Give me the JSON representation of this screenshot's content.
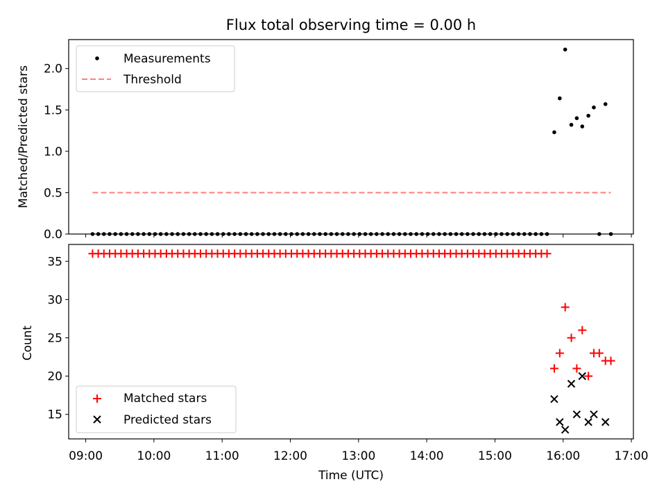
{
  "chart_data": [
    {
      "type": "scatter",
      "title": "Flux total observing time = 0.00 h",
      "xlabel": "",
      "ylabel": "Matched/Predicted stars",
      "ylim": [
        0,
        2.35
      ],
      "xlim": [
        8.75,
        17.03
      ],
      "yticks": [
        {
          "v": 0.0,
          "label": "0.0"
        },
        {
          "v": 0.5,
          "label": "0.5"
        },
        {
          "v": 1.0,
          "label": "1.0"
        },
        {
          "v": 1.5,
          "label": "1.5"
        },
        {
          "v": 2.0,
          "label": "2.0"
        }
      ],
      "legend_position": "top-left",
      "series": [
        {
          "name": "Measurements",
          "marker": "dot",
          "color": "#000000",
          "zero_run": {
            "x_start": 9.1,
            "x_end": 15.78,
            "step": 0.0833,
            "y": 0.0
          },
          "points": [
            {
              "x": 15.87,
              "y": 1.23
            },
            {
              "x": 15.95,
              "y": 1.64
            },
            {
              "x": 16.03,
              "y": 2.23
            },
            {
              "x": 16.12,
              "y": 1.32
            },
            {
              "x": 16.2,
              "y": 1.4
            },
            {
              "x": 16.28,
              "y": 1.3
            },
            {
              "x": 16.37,
              "y": 1.43
            },
            {
              "x": 16.45,
              "y": 1.53
            },
            {
              "x": 16.53,
              "y": 0.0
            },
            {
              "x": 16.62,
              "y": 1.57
            },
            {
              "x": 16.7,
              "y": 0.0
            }
          ]
        },
        {
          "name": "Threshold",
          "marker": "dashed-line",
          "color": "#ff7f7f",
          "x": [
            9.1,
            16.7
          ],
          "y": [
            0.5,
            0.5
          ]
        }
      ]
    },
    {
      "type": "scatter",
      "title": "",
      "xlabel": "Time (UTC)",
      "ylabel": "Count",
      "ylim": [
        11.8,
        37.2
      ],
      "xlim": [
        8.75,
        17.03
      ],
      "yticks": [
        {
          "v": 15,
          "label": "15"
        },
        {
          "v": 20,
          "label": "20"
        },
        {
          "v": 25,
          "label": "25"
        },
        {
          "v": 30,
          "label": "30"
        },
        {
          "v": 35,
          "label": "35"
        }
      ],
      "xticks": [
        {
          "v": 9,
          "label": "09:00"
        },
        {
          "v": 10,
          "label": "10:00"
        },
        {
          "v": 11,
          "label": "11:00"
        },
        {
          "v": 12,
          "label": "12:00"
        },
        {
          "v": 13,
          "label": "13:00"
        },
        {
          "v": 14,
          "label": "14:00"
        },
        {
          "v": 15,
          "label": "15:00"
        },
        {
          "v": 16,
          "label": "16:00"
        },
        {
          "v": 17,
          "label": "17:00"
        }
      ],
      "legend_position": "bottom-left",
      "series": [
        {
          "name": "Matched stars",
          "marker": "plus",
          "color": "#ff0000",
          "constant_run": {
            "x_start": 9.1,
            "x_end": 15.78,
            "step": 0.0833,
            "y": 36
          },
          "points": [
            {
              "x": 15.87,
              "y": 21
            },
            {
              "x": 15.95,
              "y": 23
            },
            {
              "x": 16.03,
              "y": 29
            },
            {
              "x": 16.12,
              "y": 25
            },
            {
              "x": 16.2,
              "y": 21
            },
            {
              "x": 16.28,
              "y": 26
            },
            {
              "x": 16.37,
              "y": 20
            },
            {
              "x": 16.45,
              "y": 23
            },
            {
              "x": 16.53,
              "y": 23
            },
            {
              "x": 16.62,
              "y": 22
            },
            {
              "x": 16.7,
              "y": 22
            }
          ]
        },
        {
          "name": "Predicted stars",
          "marker": "x",
          "color": "#000000",
          "points": [
            {
              "x": 15.87,
              "y": 17
            },
            {
              "x": 15.95,
              "y": 14
            },
            {
              "x": 16.03,
              "y": 13
            },
            {
              "x": 16.12,
              "y": 19
            },
            {
              "x": 16.2,
              "y": 15
            },
            {
              "x": 16.28,
              "y": 20
            },
            {
              "x": 16.37,
              "y": 14
            },
            {
              "x": 16.45,
              "y": 15
            },
            {
              "x": 16.62,
              "y": 14
            }
          ]
        }
      ]
    }
  ]
}
